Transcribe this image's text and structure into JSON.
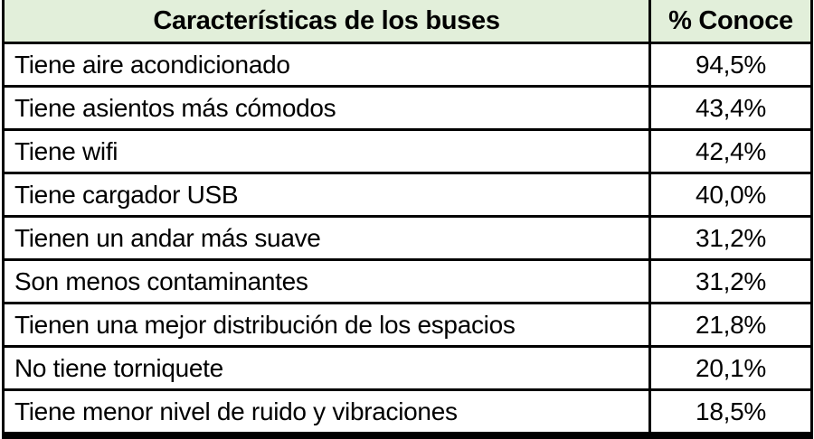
{
  "table": {
    "headers": {
      "feature": "Características de los buses",
      "percent": "% Conoce"
    },
    "rows": [
      {
        "feature": "Tiene aire acondicionado",
        "percent": "94,5%"
      },
      {
        "feature": "Tiene asientos más cómodos",
        "percent": "43,4%"
      },
      {
        "feature": "Tiene wifi",
        "percent": "42,4%"
      },
      {
        "feature": "Tiene cargador USB",
        "percent": "40,0%"
      },
      {
        "feature": "Tienen un andar más suave",
        "percent": "31,2%"
      },
      {
        "feature": "Son menos contaminantes",
        "percent": "31,2%"
      },
      {
        "feature": "Tienen una mejor distribución de los espacios",
        "percent": "21,8%"
      },
      {
        "feature": "No tiene torniquete",
        "percent": "20,1%"
      },
      {
        "feature": "Tiene menor nivel de ruido y vibraciones",
        "percent": "18,5%"
      }
    ]
  },
  "chart_data": {
    "type": "table",
    "title": "Características de los buses",
    "columns": [
      "Características de los buses",
      "% Conoce"
    ],
    "categories": [
      "Tiene aire acondicionado",
      "Tiene asientos más cómodos",
      "Tiene wifi",
      "Tiene cargador USB",
      "Tienen un andar más suave",
      "Son menos contaminantes",
      "Tienen una mejor distribución de los espacios",
      "No tiene torniquete",
      "Tiene menor nivel de ruido y vibraciones"
    ],
    "values": [
      94.5,
      43.4,
      42.4,
      40.0,
      31.2,
      31.2,
      21.8,
      20.1,
      18.5
    ],
    "value_unit": "%",
    "decimal_separator": ","
  },
  "colors": {
    "header_bg": "#e2efda",
    "row_bg": "#ffffff",
    "border": "#000000",
    "text": "#000000"
  }
}
